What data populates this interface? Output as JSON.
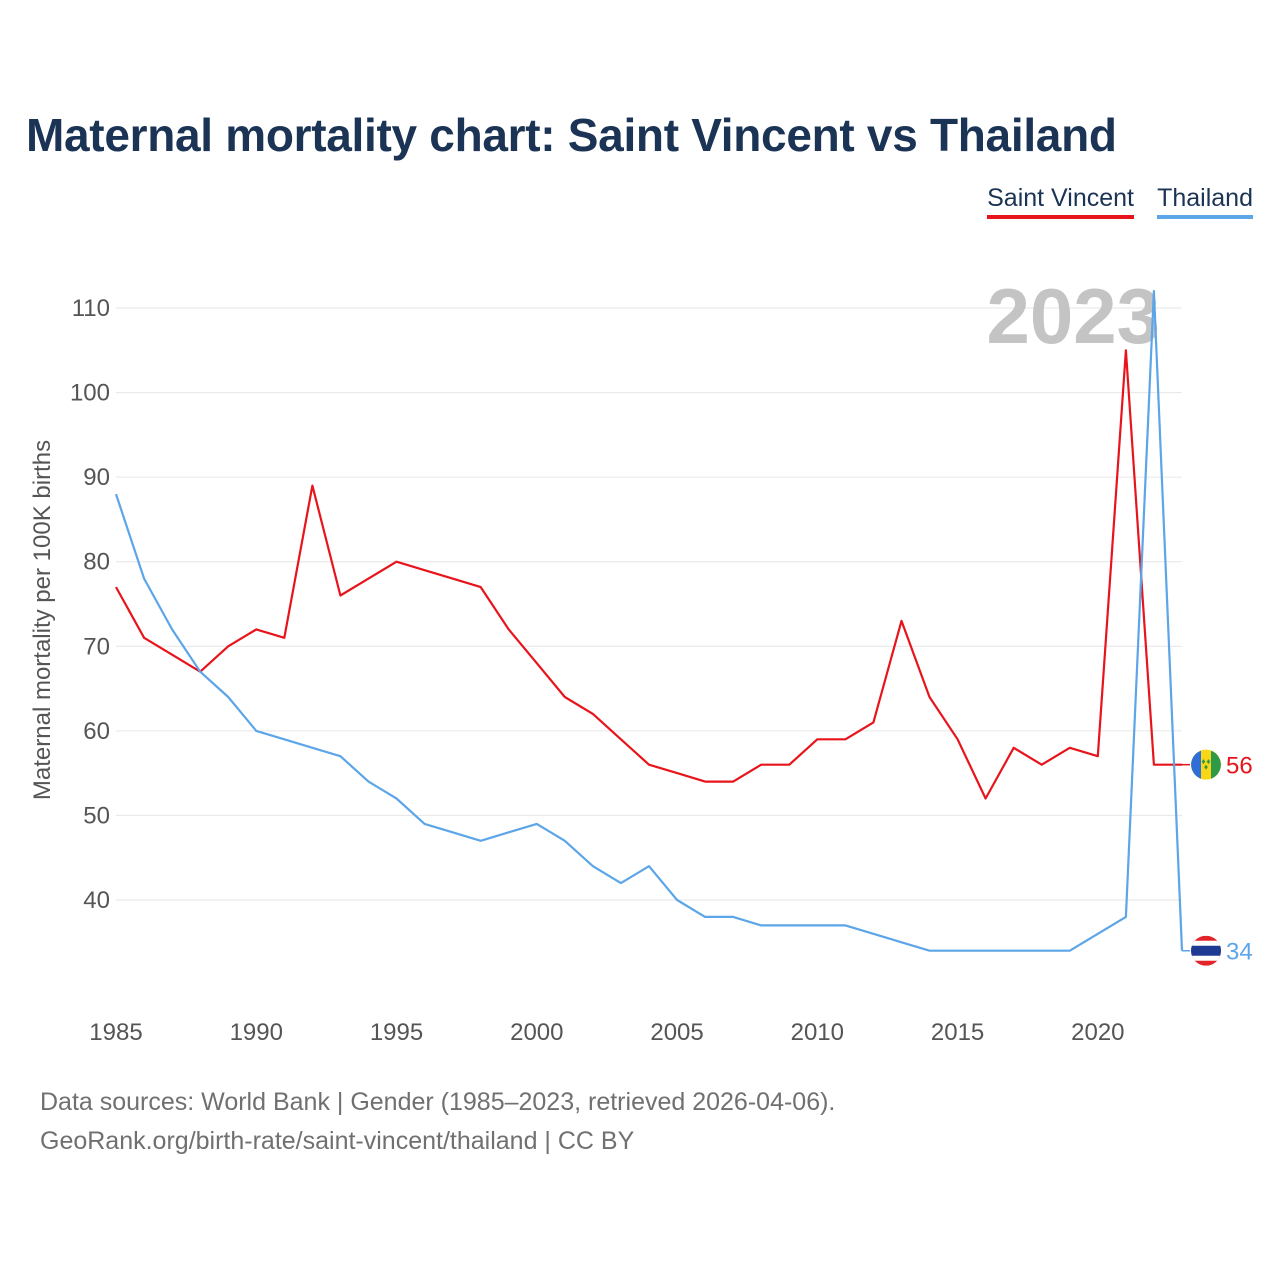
{
  "title": "Maternal mortality chart: Saint Vincent vs Thailand",
  "legend": [
    {
      "label": "Saint Vincent",
      "color": "#e8141b"
    },
    {
      "label": "Thailand",
      "color": "#5ca5e8"
    }
  ],
  "year_label": "2023",
  "sources": {
    "line1": "Data sources: World Bank | Gender (1985–2023, retrieved 2026-04-06).",
    "line2": "GeoRank.org/birth-rate/saint-vincent/thailand | CC BY"
  },
  "chart_data": {
    "type": "line",
    "title": "Maternal mortality chart: Saint Vincent vs Thailand",
    "ylabel": "Maternal mortality per 100K births",
    "xlabel": "",
    "xlim": [
      1985,
      2023
    ],
    "ylim": [
      28,
      115
    ],
    "yticks": [
      40,
      50,
      60,
      70,
      80,
      90,
      100,
      110
    ],
    "xticks": [
      1985,
      1990,
      1995,
      2000,
      2005,
      2010,
      2015,
      2020
    ],
    "x": [
      1985,
      1986,
      1987,
      1988,
      1989,
      1990,
      1991,
      1992,
      1993,
      1994,
      1995,
      1996,
      1997,
      1998,
      1999,
      2000,
      2001,
      2002,
      2003,
      2004,
      2005,
      2006,
      2007,
      2008,
      2009,
      2010,
      2011,
      2012,
      2013,
      2014,
      2015,
      2016,
      2017,
      2018,
      2019,
      2020,
      2021,
      2022,
      2023
    ],
    "series": [
      {
        "name": "Saint Vincent",
        "color": "#e8141b",
        "end_label": "56",
        "values": [
          77,
          71,
          69,
          67,
          70,
          72,
          71,
          89,
          76,
          78,
          80,
          79,
          78,
          77,
          72,
          68,
          64,
          62,
          59,
          56,
          55,
          54,
          54,
          56,
          56,
          59,
          59,
          61,
          73,
          64,
          59,
          52,
          58,
          56,
          58,
          57,
          105,
          56,
          56
        ]
      },
      {
        "name": "Thailand",
        "color": "#5ca5e8",
        "end_label": "34",
        "values": [
          88,
          78,
          72,
          67,
          64,
          60,
          59,
          58,
          57,
          54,
          52,
          49,
          48,
          47,
          48,
          49,
          47,
          44,
          42,
          44,
          40,
          38,
          38,
          37,
          37,
          37,
          37,
          36,
          35,
          34,
          34,
          34,
          34,
          34,
          34,
          36,
          38,
          112,
          34
        ]
      }
    ]
  }
}
